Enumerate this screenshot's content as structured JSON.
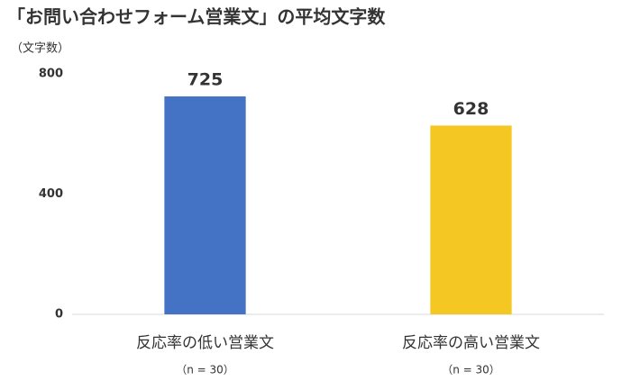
{
  "chart_data": {
    "type": "bar",
    "title": "「お問い合わせフォーム営業文」の平均文字数",
    "y_axis_label": "（文字数）",
    "categories": [
      "反応率の低い営業文",
      "反応率の高い営業文"
    ],
    "category_notes": [
      "（n = 30）",
      "（n = 30）"
    ],
    "values": [
      725,
      628
    ],
    "colors": [
      "#4472c4",
      "#f5c722"
    ],
    "ylim": [
      0,
      800
    ],
    "yticks": [
      0,
      400,
      800
    ],
    "grid": false
  }
}
